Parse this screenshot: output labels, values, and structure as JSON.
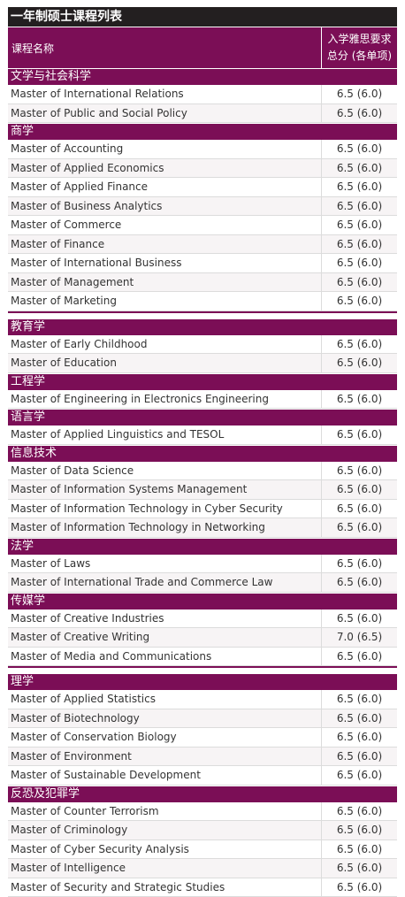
{
  "title": "一年制硕士课程列表",
  "header": {
    "course": "课程名称",
    "ielts_line1": "入学雅思要求",
    "ielts_line2": "总分 (各单项)"
  },
  "accent_color": "#7b0e56",
  "blocks": [
    {
      "category": "文学与社会科学",
      "courses": [
        {
          "name": "Master of International Relations",
          "score": "6.5 (6.0)"
        },
        {
          "name": "Master of Public and Social Policy",
          "score": "6.5 (6.0)"
        }
      ]
    },
    {
      "category": "商学",
      "end_block": true,
      "courses": [
        {
          "name": "Master of Accounting",
          "score": "6.5 (6.0)"
        },
        {
          "name": "Master of Applied Economics",
          "score": "6.5 (6.0)"
        },
        {
          "name": "Master of Applied Finance",
          "score": "6.5 (6.0)"
        },
        {
          "name": "Master of Business Analytics",
          "score": "6.5 (6.0)"
        },
        {
          "name": "Master of Commerce",
          "score": "6.5 (6.0)"
        },
        {
          "name": "Master of Finance",
          "score": "6.5 (6.0)"
        },
        {
          "name": "Master of International Business",
          "score": "6.5 (6.0)"
        },
        {
          "name": "Master of Management",
          "score": "6.5 (6.0)"
        },
        {
          "name": "Master of Marketing",
          "score": "6.5 (6.0)"
        }
      ]
    },
    {
      "category": "教育学",
      "courses": [
        {
          "name": "Master of Early Childhood",
          "score": "6.5 (6.0)"
        },
        {
          "name": "Master of Education",
          "score": "6.5 (6.0)"
        }
      ]
    },
    {
      "category": "工程学",
      "courses": [
        {
          "name": "Master of Engineering in Electronics Engineering",
          "score": "6.5 (6.0)"
        }
      ]
    },
    {
      "category": "语言学",
      "courses": [
        {
          "name": "Master of Applied Linguistics and TESOL",
          "score": "6.5 (6.0)"
        }
      ]
    },
    {
      "category": "信息技术",
      "courses": [
        {
          "name": "Master of Data Science",
          "score": "6.5 (6.0)"
        },
        {
          "name": "Master of Information Systems Management",
          "score": "6.5 (6.0)"
        },
        {
          "name": "Master of Information Technology in Cyber Security",
          "score": "6.5 (6.0)"
        },
        {
          "name": "Master of Information Technology in Networking",
          "score": "6.5 (6.0)"
        }
      ]
    },
    {
      "category": "法学",
      "courses": [
        {
          "name": "Master of Laws",
          "score": "6.5 (6.0)"
        },
        {
          "name": "Master of International Trade and Commerce Law",
          "score": "6.5 (6.0)"
        }
      ]
    },
    {
      "category": "传媒学",
      "end_block": true,
      "courses": [
        {
          "name": "Master of Creative Industries",
          "score": "6.5 (6.0)"
        },
        {
          "name": "Master of Creative Writing",
          "score": "7.0 (6.5)"
        },
        {
          "name": "Master of Media and Communications",
          "score": "6.5 (6.0)"
        }
      ]
    },
    {
      "category": "理学",
      "courses": [
        {
          "name": "Master of Applied Statistics",
          "score": "6.5 (6.0)"
        },
        {
          "name": "Master of Biotechnology",
          "score": "6.5 (6.0)"
        },
        {
          "name": "Master of Conservation Biology",
          "score": "6.5 (6.0)"
        },
        {
          "name": "Master of Environment",
          "score": "6.5 (6.0)"
        },
        {
          "name": "Master of Sustainable Development",
          "score": "6.5 (6.0)"
        }
      ]
    },
    {
      "category": "反恐及犯罪学",
      "courses": [
        {
          "name": "Master of Counter Terrorism",
          "score": "6.5 (6.0)"
        },
        {
          "name": "Master of Criminology",
          "score": "6.5 (6.0)"
        },
        {
          "name": "Master of Cyber Security Analysis",
          "score": "6.5 (6.0)"
        },
        {
          "name": "Master of Intelligence",
          "score": "6.5 (6.0)"
        },
        {
          "name": "Master of Security and Strategic Studies",
          "score": "6.5 (6.0)"
        }
      ]
    }
  ]
}
